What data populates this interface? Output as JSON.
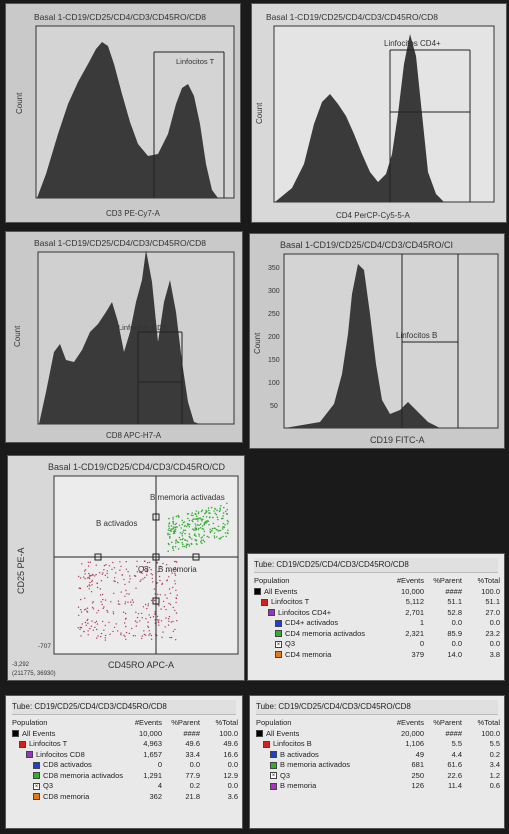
{
  "panels": {
    "p1": {
      "title": "Basal 1-CD19/CD25/CD4/CD3/CD45RO/CD8",
      "xlabel": "CD3 PE-Cy7-A",
      "ylabel": "Count",
      "gate": "Linfocitos T"
    },
    "p2": {
      "title": "Basal 1-CD19/CD25/CD4/CD3/CD45RO/CD8",
      "xlabel": "CD4 PerCP-Cy5-5-A",
      "ylabel": "Count",
      "gate": "Linfocitos CD4+"
    },
    "p3": {
      "title": "Basal 1-CD19/CD25/CD4/CD3/CD45RO/CD8",
      "xlabel": "CD8 APC-H7-A",
      "ylabel": "Count",
      "gate": "Linfocitos CD8"
    },
    "p4": {
      "title": "Basal 1-CD19/CD25/CD4/CD3/CD45RO/CI",
      "xlabel": "CD19 FITC-A",
      "ylabel": "Count",
      "gate": "Linfocitos B",
      "yticks": [
        "50",
        "100",
        "150",
        "200",
        "250",
        "300",
        "350"
      ]
    },
    "p5": {
      "title": "Basal 1-CD19/CD25/CD4/CD3/CD45RO/CD",
      "xlabel": "CD45RO APC-A",
      "ylabel": "CD25 PE-A",
      "q_bact": "B activados",
      "q_bmact": "B memoria activadas",
      "q_q3": "Q3",
      "q_bmem": "B memoria",
      "coord1": "-3,292",
      "coord2": "(211775, 36930)",
      "yneg": "-707"
    }
  },
  "tables": {
    "t1": {
      "tube": "Tube: CD19/CD25/CD4/CD3/CD45RO/CD8",
      "headers": [
        "Population",
        "#Events",
        "%Parent",
        "%Total"
      ],
      "rows": [
        {
          "name": "All Events",
          "color": "#000000",
          "events": "10,000",
          "parent": "####",
          "total": "100.0"
        },
        {
          "name": "Linfocitos T",
          "color": "#d21f1f",
          "events": "5,112",
          "parent": "51.1",
          "total": "51.1"
        },
        {
          "name": "Linfocitos CD4+",
          "color": "#9b30c8",
          "events": "2,701",
          "parent": "52.8",
          "total": "27.0"
        },
        {
          "name": "CD4+ activados",
          "color": "#1f3fd2",
          "events": "1",
          "parent": "0.0",
          "total": "0.0"
        },
        {
          "name": "CD4 memoria activados",
          "color": "#2fb12f",
          "events": "2,321",
          "parent": "85.9",
          "total": "23.2"
        },
        {
          "name": "Q3",
          "color": "#ffffff",
          "events": "0",
          "parent": "0.0",
          "total": "0.0"
        },
        {
          "name": "CD4 memoria",
          "color": "#e07a1f",
          "events": "379",
          "parent": "14.0",
          "total": "3.8"
        }
      ]
    },
    "t2": {
      "tube": "Tube: CD19/CD25/CD4/CD3/CD45RO/CD8",
      "headers": [
        "Population",
        "#Events",
        "%Parent",
        "%Total"
      ],
      "rows": [
        {
          "name": "All Events",
          "color": "#000000",
          "events": "10,000",
          "parent": "####",
          "total": "100.0"
        },
        {
          "name": "Linfocitos T",
          "color": "#d21f1f",
          "events": "4,963",
          "parent": "49.6",
          "total": "49.6"
        },
        {
          "name": "Linfocitos CD8",
          "color": "#9b30c8",
          "events": "1,657",
          "parent": "33.4",
          "total": "16.6"
        },
        {
          "name": "CD8 activados",
          "color": "#1f3fd2",
          "events": "0",
          "parent": "0.0",
          "total": "0.0"
        },
        {
          "name": "CD8 memoria activados",
          "color": "#2fb12f",
          "events": "1,291",
          "parent": "77.9",
          "total": "12.9"
        },
        {
          "name": "Q3",
          "color": "#ffffff",
          "events": "4",
          "parent": "0.2",
          "total": "0.0"
        },
        {
          "name": "CD8 memoria",
          "color": "#e07a1f",
          "events": "362",
          "parent": "21.8",
          "total": "3.6"
        }
      ]
    },
    "t3": {
      "tube": "Tube: CD19/CD25/CD4/CD3/CD45RO/CD8",
      "headers": [
        "Population",
        "#Events",
        "%Parent",
        "%Total"
      ],
      "rows": [
        {
          "name": "All Events",
          "color": "#000000",
          "events": "20,000",
          "parent": "####",
          "total": "100.0"
        },
        {
          "name": "Linfocitos B",
          "color": "#d21f1f",
          "events": "1,106",
          "parent": "5.5",
          "total": "5.5"
        },
        {
          "name": "B activados",
          "color": "#1f3fd2",
          "events": "49",
          "parent": "4.4",
          "total": "0.2"
        },
        {
          "name": "B memoria activados",
          "color": "#2fb12f",
          "events": "681",
          "parent": "61.6",
          "total": "3.4"
        },
        {
          "name": "Q3",
          "color": "#ffffff",
          "events": "250",
          "parent": "22.6",
          "total": "1.2"
        },
        {
          "name": "B memoria",
          "color": "#b030c8",
          "events": "126",
          "parent": "11.4",
          "total": "0.6"
        }
      ]
    }
  }
}
